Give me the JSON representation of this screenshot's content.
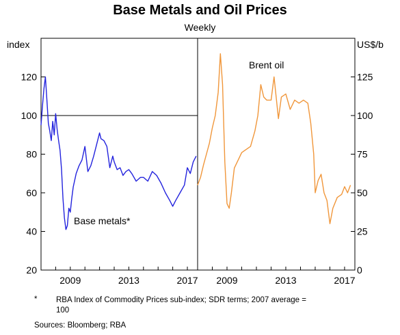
{
  "title": "Base Metals and Oil Prices",
  "subtitle": "Weekly",
  "footnote": {
    "marker": "*",
    "text": "RBA Index of Commodity Prices sub-index; SDR terms; 2007 average = 100"
  },
  "sources": "Sources:  Bloomberg; RBA",
  "colors": {
    "base_metals": "#2222dd",
    "brent_oil": "#f0963a",
    "axis": "#000000"
  },
  "chart_data": [
    {
      "type": "line",
      "panel": "left",
      "ylabel": "index",
      "ylim": [
        20,
        140
      ],
      "yticks": [
        20,
        40,
        60,
        80,
        100,
        120
      ],
      "xlim": [
        2007.0,
        2017.7
      ],
      "xticks": [
        2009,
        2013,
        2017
      ],
      "reference_line": 100,
      "series": [
        {
          "name": "Base metals*",
          "x": [
            2007.0,
            2007.1,
            2007.2,
            2007.3,
            2007.4,
            2007.5,
            2007.6,
            2007.7,
            2007.8,
            2007.9,
            2008.0,
            2008.1,
            2008.2,
            2008.3,
            2008.4,
            2008.5,
            2008.6,
            2008.7,
            2008.8,
            2008.9,
            2009.0,
            2009.1,
            2009.2,
            2009.4,
            2009.6,
            2009.8,
            2010.0,
            2010.2,
            2010.4,
            2010.6,
            2010.8,
            2011.0,
            2011.1,
            2011.3,
            2011.5,
            2011.7,
            2011.9,
            2012.0,
            2012.2,
            2012.4,
            2012.6,
            2012.8,
            2013.0,
            2013.2,
            2013.5,
            2013.8,
            2014.0,
            2014.3,
            2014.6,
            2014.9,
            2015.2,
            2015.5,
            2015.8,
            2016.0,
            2016.2,
            2016.5,
            2016.8,
            2017.0,
            2017.2,
            2017.4,
            2017.6
          ],
          "values": [
            95,
            105,
            114,
            120,
            108,
            96,
            92,
            87,
            97,
            90,
            101,
            93,
            87,
            82,
            72,
            57,
            47,
            41,
            43,
            52,
            50,
            57,
            63,
            70,
            74,
            77,
            84,
            71,
            74,
            79,
            85,
            91,
            88,
            87,
            84,
            73,
            79,
            76,
            72,
            73,
            69,
            71,
            72,
            70,
            66,
            68,
            68,
            66,
            71,
            69,
            65,
            60,
            56,
            53,
            56,
            60,
            64,
            73,
            70,
            76,
            79
          ]
        }
      ]
    },
    {
      "type": "line",
      "panel": "right",
      "ylabel": "US$/b",
      "ylim": [
        0,
        150
      ],
      "yticks": [
        0,
        25,
        50,
        75,
        100,
        125
      ],
      "xlim": [
        2007.0,
        2017.7
      ],
      "xticks": [
        2009,
        2013,
        2017
      ],
      "series": [
        {
          "name": "Brent oil",
          "x": [
            2007.0,
            2007.2,
            2007.4,
            2007.6,
            2007.8,
            2008.0,
            2008.2,
            2008.4,
            2008.55,
            2008.7,
            2008.85,
            2009.0,
            2009.15,
            2009.3,
            2009.5,
            2009.7,
            2010.0,
            2010.3,
            2010.6,
            2010.9,
            2011.1,
            2011.3,
            2011.5,
            2011.7,
            2012.0,
            2012.2,
            2012.5,
            2012.7,
            2013.0,
            2013.3,
            2013.6,
            2013.9,
            2014.2,
            2014.5,
            2014.7,
            2014.9,
            2015.0,
            2015.2,
            2015.4,
            2015.6,
            2015.8,
            2016.0,
            2016.2,
            2016.5,
            2016.8,
            2017.0,
            2017.2,
            2017.4
          ],
          "values": [
            55,
            60,
            68,
            75,
            82,
            92,
            100,
            115,
            140,
            120,
            70,
            43,
            40,
            50,
            66,
            70,
            76,
            78,
            80,
            90,
            100,
            120,
            112,
            110,
            110,
            125,
            98,
            112,
            114,
            104,
            110,
            108,
            110,
            108,
            95,
            75,
            50,
            58,
            62,
            50,
            45,
            30,
            40,
            47,
            49,
            54,
            50,
            55
          ]
        }
      ]
    }
  ]
}
